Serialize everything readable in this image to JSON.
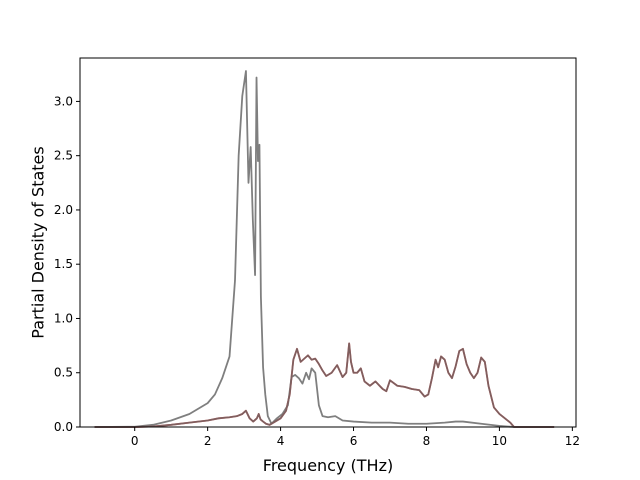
{
  "chart_data": {
    "type": "line",
    "title": "",
    "xlabel": "Frequency (THz)",
    "ylabel": "Partial Density of States",
    "xlim": [
      -1.5,
      12.1
    ],
    "ylim": [
      0.0,
      3.4
    ],
    "xticks": [
      0,
      2,
      4,
      6,
      8,
      10,
      12
    ],
    "xtick_labels": [
      "0",
      "2",
      "4",
      "6",
      "8",
      "10",
      "12"
    ],
    "yticks": [
      0.0,
      0.5,
      1.0,
      1.5,
      2.0,
      2.5,
      3.0
    ],
    "ytick_labels": [
      "0.0",
      "0.5",
      "1.0",
      "1.5",
      "2.0",
      "2.5",
      "3.0"
    ],
    "grid": false,
    "legend": false,
    "series": [
      {
        "color": "#ff7f7f",
        "x": [
          -1.1,
          0,
          0.5,
          1.0,
          1.5,
          2.0,
          2.3,
          2.6,
          2.8,
          2.95,
          3.05,
          3.15,
          3.25,
          3.35,
          3.4,
          3.45,
          3.52,
          3.6,
          3.7,
          3.85,
          4.0,
          4.15,
          4.25,
          4.35,
          4.45,
          4.55,
          4.65,
          4.75,
          4.85,
          4.95,
          5.05,
          5.15,
          5.25,
          5.4,
          5.55,
          5.7,
          5.8,
          5.88,
          5.93,
          6.0,
          6.1,
          6.2,
          6.3,
          6.45,
          6.6,
          6.8,
          6.9,
          7.0,
          7.2,
          7.4,
          7.6,
          7.8,
          7.95,
          8.05,
          8.15,
          8.25,
          8.32,
          8.4,
          8.5,
          8.6,
          8.7,
          8.8,
          8.9,
          9.0,
          9.1,
          9.2,
          9.3,
          9.4,
          9.5,
          9.6,
          9.7,
          9.85,
          10.0,
          10.15,
          10.3,
          10.4,
          10.5,
          11.5
        ],
        "y": [
          0.0,
          0.0,
          0.005,
          0.02,
          0.04,
          0.06,
          0.08,
          0.09,
          0.1,
          0.12,
          0.15,
          0.08,
          0.05,
          0.08,
          0.12,
          0.07,
          0.05,
          0.03,
          0.02,
          0.05,
          0.08,
          0.15,
          0.3,
          0.62,
          0.72,
          0.6,
          0.63,
          0.66,
          0.62,
          0.63,
          0.58,
          0.52,
          0.47,
          0.5,
          0.57,
          0.46,
          0.5,
          0.77,
          0.6,
          0.5,
          0.5,
          0.54,
          0.42,
          0.38,
          0.42,
          0.35,
          0.33,
          0.43,
          0.38,
          0.37,
          0.35,
          0.34,
          0.28,
          0.3,
          0.45,
          0.62,
          0.55,
          0.65,
          0.62,
          0.5,
          0.45,
          0.56,
          0.7,
          0.72,
          0.58,
          0.5,
          0.45,
          0.5,
          0.64,
          0.6,
          0.38,
          0.18,
          0.12,
          0.08,
          0.04,
          0.0,
          0.0,
          0.0
        ]
      },
      {
        "color": "#7f7f7f",
        "x": [
          -1.1,
          0,
          0.5,
          1.0,
          1.5,
          2.0,
          2.2,
          2.4,
          2.6,
          2.75,
          2.85,
          2.95,
          3.05,
          3.12,
          3.18,
          3.24,
          3.3,
          3.34,
          3.38,
          3.42,
          3.46,
          3.52,
          3.58,
          3.65,
          3.75,
          3.9,
          4.05,
          4.2,
          4.3,
          4.4,
          4.5,
          4.6,
          4.7,
          4.78,
          4.85,
          4.95,
          5.05,
          5.15,
          5.3,
          5.5,
          5.7,
          6.0,
          6.5,
          7.0,
          7.5,
          8.0,
          8.5,
          8.8,
          9.0,
          9.5,
          10.0,
          10.4,
          11.5
        ],
        "y": [
          0.0,
          0.002,
          0.02,
          0.06,
          0.12,
          0.22,
          0.3,
          0.45,
          0.65,
          1.35,
          2.5,
          3.05,
          3.28,
          2.25,
          2.58,
          1.9,
          1.4,
          3.22,
          2.45,
          2.6,
          1.2,
          0.55,
          0.3,
          0.1,
          0.03,
          0.08,
          0.12,
          0.2,
          0.46,
          0.48,
          0.45,
          0.4,
          0.5,
          0.44,
          0.54,
          0.5,
          0.2,
          0.1,
          0.09,
          0.1,
          0.06,
          0.05,
          0.04,
          0.04,
          0.03,
          0.03,
          0.04,
          0.05,
          0.05,
          0.03,
          0.01,
          0.0,
          0.0
        ]
      },
      {
        "color": "#7f5f5f",
        "x": [
          -1.1,
          0,
          0.5,
          1.0,
          1.5,
          2.0,
          2.3,
          2.6,
          2.8,
          2.95,
          3.05,
          3.15,
          3.25,
          3.35,
          3.4,
          3.45,
          3.52,
          3.6,
          3.7,
          3.85,
          4.0,
          4.15,
          4.25,
          4.35,
          4.45,
          4.55,
          4.65,
          4.75,
          4.85,
          4.95,
          5.05,
          5.15,
          5.25,
          5.4,
          5.55,
          5.7,
          5.8,
          5.88,
          5.93,
          6.0,
          6.1,
          6.2,
          6.3,
          6.45,
          6.6,
          6.8,
          6.9,
          7.0,
          7.2,
          7.4,
          7.6,
          7.8,
          7.95,
          8.05,
          8.15,
          8.25,
          8.32,
          8.4,
          8.5,
          8.6,
          8.7,
          8.8,
          8.9,
          9.0,
          9.1,
          9.2,
          9.3,
          9.4,
          9.5,
          9.6,
          9.7,
          9.85,
          10.0,
          10.15,
          10.3,
          10.4,
          10.5,
          11.5
        ],
        "y": [
          0.0,
          0.0,
          0.005,
          0.02,
          0.04,
          0.06,
          0.08,
          0.09,
          0.1,
          0.12,
          0.15,
          0.08,
          0.05,
          0.08,
          0.12,
          0.07,
          0.05,
          0.03,
          0.02,
          0.05,
          0.08,
          0.15,
          0.3,
          0.62,
          0.72,
          0.6,
          0.63,
          0.66,
          0.62,
          0.63,
          0.58,
          0.52,
          0.47,
          0.5,
          0.57,
          0.46,
          0.5,
          0.77,
          0.6,
          0.5,
          0.5,
          0.54,
          0.42,
          0.38,
          0.42,
          0.35,
          0.33,
          0.43,
          0.38,
          0.37,
          0.35,
          0.34,
          0.28,
          0.3,
          0.45,
          0.62,
          0.55,
          0.65,
          0.62,
          0.5,
          0.45,
          0.56,
          0.7,
          0.72,
          0.58,
          0.5,
          0.45,
          0.5,
          0.64,
          0.6,
          0.38,
          0.18,
          0.12,
          0.08,
          0.04,
          0.0,
          0.0,
          0.0
        ]
      }
    ]
  }
}
